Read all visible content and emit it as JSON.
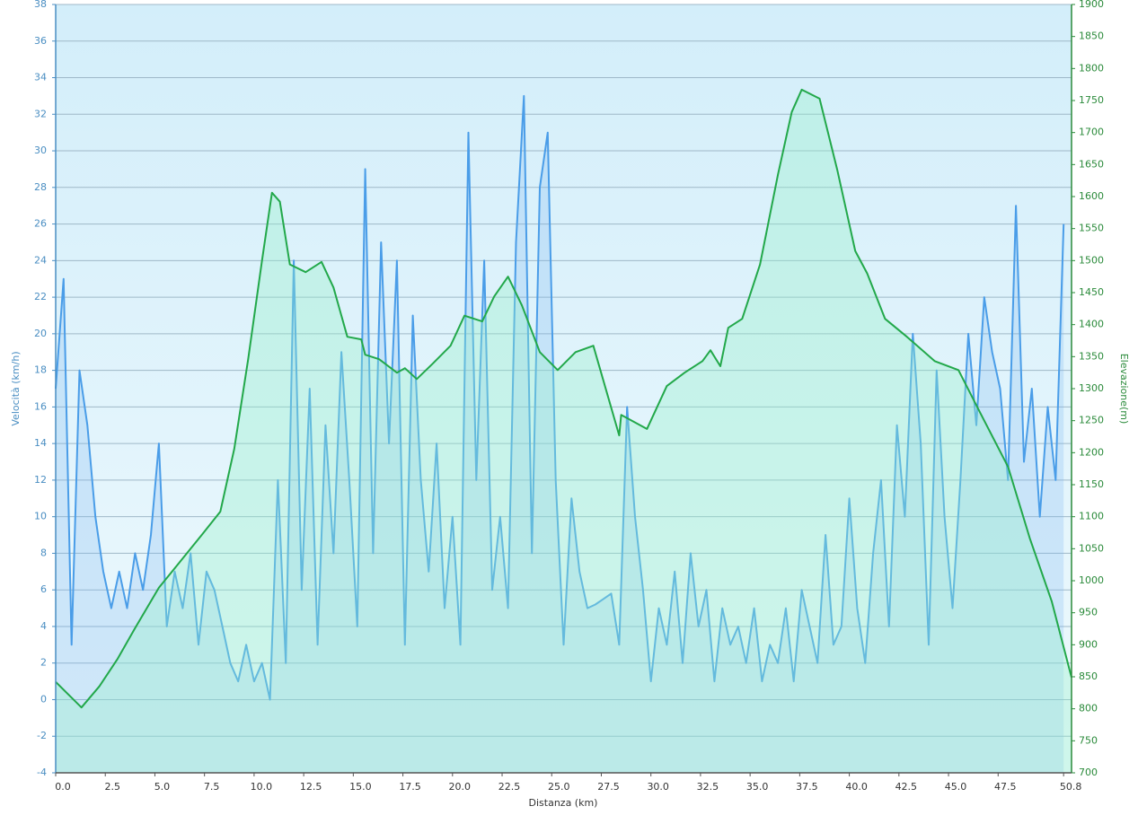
{
  "chart_data": {
    "type": "line",
    "xlabel": "Distanza  (km)",
    "ylabel": "Velocità (km/h)",
    "y2label": "Elevazione(m)",
    "xlim": [
      0,
      51.2
    ],
    "ylim": [
      -4,
      38
    ],
    "y2lim": [
      700,
      1900
    ],
    "xticks": [
      {
        "value": 0,
        "label": "0.0"
      },
      2.5,
      {
        "value": 5,
        "label": "5.0"
      },
      7.5,
      {
        "value": 10,
        "label": "10.0"
      },
      12.5,
      {
        "value": 15,
        "label": "15.0"
      },
      17.5,
      {
        "value": 20,
        "label": "20.0"
      },
      22.5,
      {
        "value": 25,
        "label": "25.0"
      },
      27.5,
      {
        "value": 30,
        "label": "30.0"
      },
      32.5,
      {
        "value": 35,
        "label": "35.0"
      },
      37.5,
      {
        "value": 40,
        "label": "40.0"
      },
      42.5,
      {
        "value": 45,
        "label": "45.0"
      },
      47.5,
      50.8
    ],
    "yticks": [
      -4,
      -2,
      0,
      2,
      4,
      6,
      8,
      10,
      12,
      14,
      16,
      18,
      20,
      22,
      24,
      26,
      28,
      30,
      32,
      34,
      36,
      38
    ],
    "y2ticks": [
      700,
      750,
      800,
      850,
      900,
      950,
      1000,
      1050,
      1100,
      1150,
      1200,
      1250,
      1300,
      1350,
      1400,
      1450,
      1500,
      1550,
      1600,
      1650,
      1700,
      1750,
      1800,
      1850,
      1900
    ],
    "grid": true,
    "series": [
      {
        "name": "Velocità",
        "color": "#4a9de8",
        "axis": "y",
        "x": [
          0.0,
          0.4,
          0.8,
          1.2,
          1.6,
          2.0,
          2.4,
          2.8,
          3.2,
          3.6,
          4.0,
          4.4,
          4.8,
          5.2,
          5.6,
          6.0,
          6.4,
          6.8,
          7.2,
          7.6,
          8.0,
          8.4,
          8.8,
          9.2,
          9.6,
          10.0,
          10.4,
          10.8,
          11.2,
          11.6,
          12.0,
          12.4,
          12.8,
          13.2,
          13.6,
          14.0,
          14.4,
          14.8,
          15.2,
          15.6,
          16.0,
          16.4,
          16.8,
          17.2,
          17.6,
          18.0,
          18.4,
          18.8,
          19.2,
          19.6,
          20.0,
          20.4,
          20.8,
          21.2,
          21.6,
          22.0,
          22.4,
          22.8,
          23.2,
          23.6,
          24.0,
          24.4,
          24.8,
          25.2,
          25.6,
          26.0,
          26.4,
          26.8,
          27.2,
          27.6,
          28.0,
          28.4,
          28.8,
          29.2,
          29.6,
          30.0,
          30.4,
          30.8,
          31.2,
          31.6,
          32.0,
          32.4,
          32.8,
          33.2,
          33.6,
          34.0,
          34.4,
          34.8,
          35.2,
          35.6,
          36.0,
          36.4,
          36.8,
          37.2,
          37.6,
          38.0,
          38.4,
          38.8,
          39.2,
          39.6,
          40.0,
          40.4,
          40.8,
          41.2,
          41.6,
          42.0,
          42.4,
          42.8,
          43.2,
          43.6,
          44.0,
          44.4,
          44.8,
          45.2,
          45.6,
          46.0,
          46.4,
          46.8,
          47.2,
          47.6,
          48.0,
          48.4,
          48.8,
          49.2,
          49.6,
          50.0,
          50.4,
          50.8
        ],
        "values": [
          17,
          23,
          3,
          18,
          15,
          10,
          7,
          5,
          7,
          5,
          8,
          6,
          9,
          14,
          4,
          7,
          5,
          8,
          3,
          7,
          6,
          4,
          2,
          1,
          3,
          1,
          2,
          0,
          12,
          2,
          24,
          6,
          17,
          3,
          15,
          8,
          19,
          12,
          4,
          29,
          8,
          25,
          14,
          24,
          3,
          21,
          12,
          7,
          14,
          5,
          10,
          3,
          31,
          12,
          24,
          6,
          10,
          5,
          25,
          33,
          8,
          28,
          31,
          12,
          3,
          11,
          7,
          5,
          5.2,
          5.5,
          5.8,
          3,
          16,
          10,
          6,
          1,
          5,
          3,
          7,
          2,
          8,
          4,
          6,
          1,
          5,
          3,
          4,
          2,
          5,
          1,
          3,
          2,
          5,
          1,
          6,
          4,
          2,
          9,
          3,
          4,
          11,
          5,
          2,
          8,
          12,
          4,
          15,
          10,
          20,
          14,
          3,
          18,
          10,
          5,
          12,
          20,
          15,
          22,
          19,
          17,
          12,
          27,
          13,
          17,
          10,
          16,
          12,
          26
        ]
      },
      {
        "name": "Elevazione",
        "color": "#22a84a",
        "axis": "y2",
        "x": [
          0,
          1.3,
          2.2,
          3.1,
          4.0,
          5.2,
          6.3,
          7.4,
          8.3,
          9.0,
          9.7,
          10.4,
          10.9,
          11.3,
          11.8,
          12.6,
          13.4,
          14.0,
          14.7,
          15.4,
          15.6,
          16.3,
          17.2,
          17.6,
          18.2,
          19.0,
          19.9,
          20.6,
          21.5,
          22.1,
          22.8,
          23.5,
          24.4,
          25.3,
          26.2,
          27.1,
          28.4,
          28.5,
          29.8,
          30.8,
          31.7,
          32.6,
          33.0,
          33.5,
          33.9,
          34.6,
          35.5,
          36.4,
          37.1,
          37.6,
          38.5,
          39.4,
          40.3,
          40.9,
          41.8,
          42.9,
          44.3,
          45.5,
          46.6,
          48.0,
          49.1,
          50.2,
          51.2
        ],
        "values": [
          842,
          802,
          835,
          877,
          926,
          989,
          1031,
          1073,
          1108,
          1206,
          1346,
          1500,
          1606,
          1592,
          1494,
          1482,
          1498,
          1458,
          1381,
          1377,
          1353,
          1346,
          1325,
          1332,
          1315,
          1339,
          1367,
          1414,
          1405,
          1444,
          1475,
          1430,
          1357,
          1329,
          1357,
          1367,
          1227,
          1259,
          1237,
          1304,
          1325,
          1343,
          1360,
          1335,
          1395,
          1409,
          1494,
          1634,
          1732,
          1767,
          1753,
          1641,
          1515,
          1480,
          1409,
          1381,
          1343,
          1329,
          1262,
          1178,
          1066,
          968,
          849
        ]
      }
    ]
  }
}
